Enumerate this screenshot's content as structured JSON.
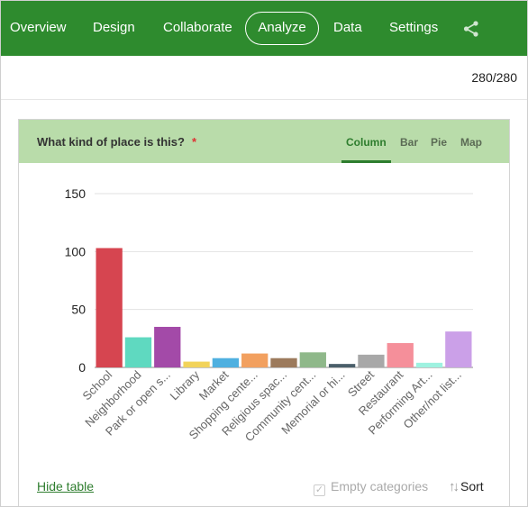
{
  "nav": {
    "items": [
      "Overview",
      "Design",
      "Collaborate",
      "Analyze",
      "Data",
      "Settings"
    ],
    "active": "Analyze",
    "share_icon": "share-icon",
    "background": "#2e8b2e"
  },
  "response_count": "280/280",
  "question": {
    "title": "What kind of place is this?",
    "required_mark": "*",
    "header_color": "#b9dcaa"
  },
  "chart_tabs": {
    "column": "Column",
    "bar": "Bar",
    "pie": "Pie",
    "map": "Map",
    "active": "Column"
  },
  "chart_data": {
    "type": "bar",
    "categories": [
      "School",
      "Neighborhood",
      "Park or open s...",
      "Library",
      "Market",
      "Shopping cente...",
      "Religious spac...",
      "Community cent...",
      "Memorial or hi...",
      "Street",
      "Restaurant",
      "Performing Art...",
      "Other/not list..."
    ],
    "values": [
      103,
      26,
      35,
      5,
      8,
      12,
      8,
      13,
      3,
      11,
      21,
      4,
      31
    ],
    "colors": [
      "#d64550",
      "#5fd9c0",
      "#a34aa8",
      "#f2d35a",
      "#4fb0e0",
      "#f2a05f",
      "#9c7a5c",
      "#8fb88a",
      "#4a5f6a",
      "#a8a8a8",
      "#f58f9a",
      "#9ef2e0",
      "#cba0e8"
    ],
    "yticks": [
      0,
      50,
      100,
      150
    ],
    "ylim": [
      0,
      150
    ],
    "grid": true
  },
  "footer": {
    "hide_table": "Hide table",
    "empty_categories": "Empty categories",
    "sort": "Sort"
  }
}
